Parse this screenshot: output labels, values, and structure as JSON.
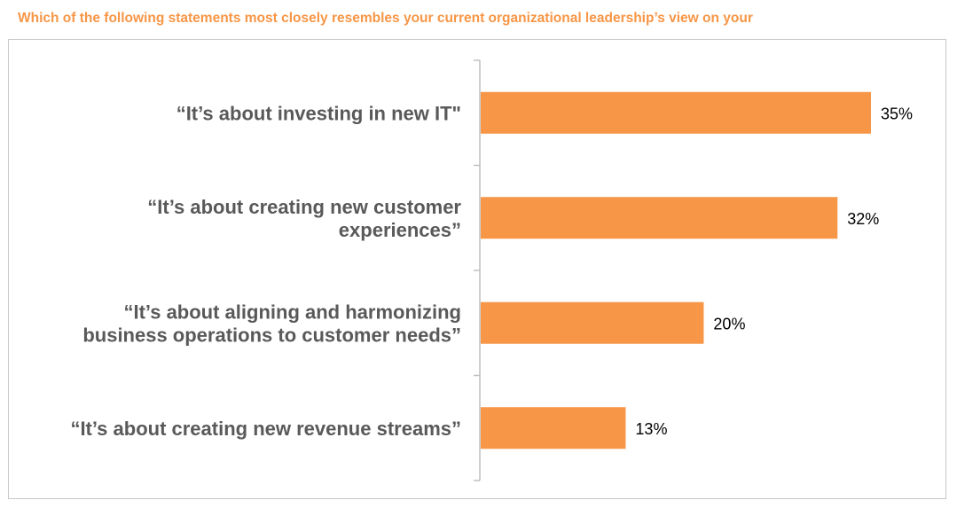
{
  "title": "Which of the following statements most closely resembles your current organizational leadership’s view on your",
  "colors": {
    "bar": "#f79646",
    "title": "#f79646",
    "axis": "#bfbfbf",
    "label": "#595959"
  },
  "chart_data": {
    "type": "bar",
    "orientation": "horizontal",
    "categories": [
      [
        "“It’s about investing in new IT\""
      ],
      [
        "“It’s about creating new customer",
        "experiences”"
      ],
      [
        "“It’s about aligning and harmonizing",
        "business operations to customer needs”"
      ],
      [
        "“It’s about creating new revenue streams”"
      ]
    ],
    "values": [
      35,
      32,
      20,
      13
    ],
    "value_labels": [
      "35%",
      "32%",
      "20%",
      "13%"
    ],
    "unit": "%",
    "xlim": [
      0,
      35
    ],
    "grid": false,
    "legend": "none"
  }
}
